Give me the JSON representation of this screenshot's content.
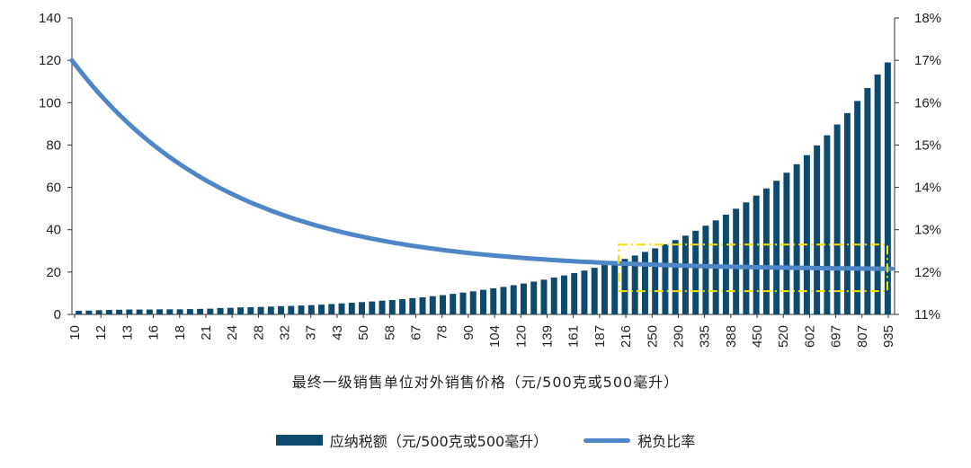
{
  "chart_data": {
    "type": "bar+line",
    "xlabel": "最终一级销售单位对外销售价格（元/500克或500毫升）",
    "x_tick_labels": [
      "10",
      "12",
      "13",
      "16",
      "18",
      "21",
      "24",
      "28",
      "32",
      "37",
      "43",
      "50",
      "58",
      "67",
      "78",
      "90",
      "104",
      "120",
      "139",
      "161",
      "187",
      "216",
      "250",
      "290",
      "335",
      "388",
      "450",
      "520",
      "602",
      "697",
      "807",
      "935"
    ],
    "left_axis": {
      "min": 0,
      "max": 140,
      "ticks": [
        0,
        20,
        40,
        60,
        80,
        100,
        120,
        140
      ]
    },
    "right_axis": {
      "min": 11,
      "max": 18,
      "ticks": [
        "11%",
        "12%",
        "13%",
        "14%",
        "15%",
        "16%",
        "17%",
        "18%"
      ]
    },
    "series": [
      {
        "name": "应纳税额（元/500克或500毫升）",
        "type": "bar",
        "axis": "left",
        "color": "#0e4a6e",
        "values": [
          1.7,
          1.8,
          2.0,
          2.1,
          2.2,
          2.3,
          2.3,
          2.3,
          2.4,
          2.4,
          2.4,
          2.5,
          2.6,
          2.7,
          3.0,
          3.1,
          3.3,
          3.4,
          3.5,
          3.7,
          3.9,
          4.0,
          4.2,
          4.4,
          4.6,
          4.9,
          5.2,
          5.5,
          5.8,
          6.1,
          6.5,
          6.8,
          7.2,
          7.7,
          8.1,
          8.6,
          9.1,
          9.7,
          10.3,
          10.9,
          11.6,
          12.3,
          13.0,
          13.8,
          14.6,
          15.5,
          16.4,
          17.4,
          18.4,
          19.5,
          20.7,
          22.0,
          23.3,
          24.7,
          26.2,
          27.8,
          29.5,
          31.2,
          33.1,
          35.1,
          37.2,
          39.5,
          41.9,
          44.4,
          47.1,
          49.9,
          52.9,
          56.1,
          59.5,
          63.1,
          66.9,
          70.9,
          75.2,
          79.8,
          84.6,
          89.7,
          95.1,
          100.8,
          106.9,
          113.3,
          119.0
        ]
      },
      {
        "name": "税负比率",
        "type": "line",
        "axis": "right",
        "color": "#4f86c6",
        "start": 17.0,
        "end": 12.05
      }
    ],
    "highlight": {
      "x_from": 216,
      "x_to": 935,
      "y_from": 11.55,
      "y_to": 12.65
    }
  }
}
